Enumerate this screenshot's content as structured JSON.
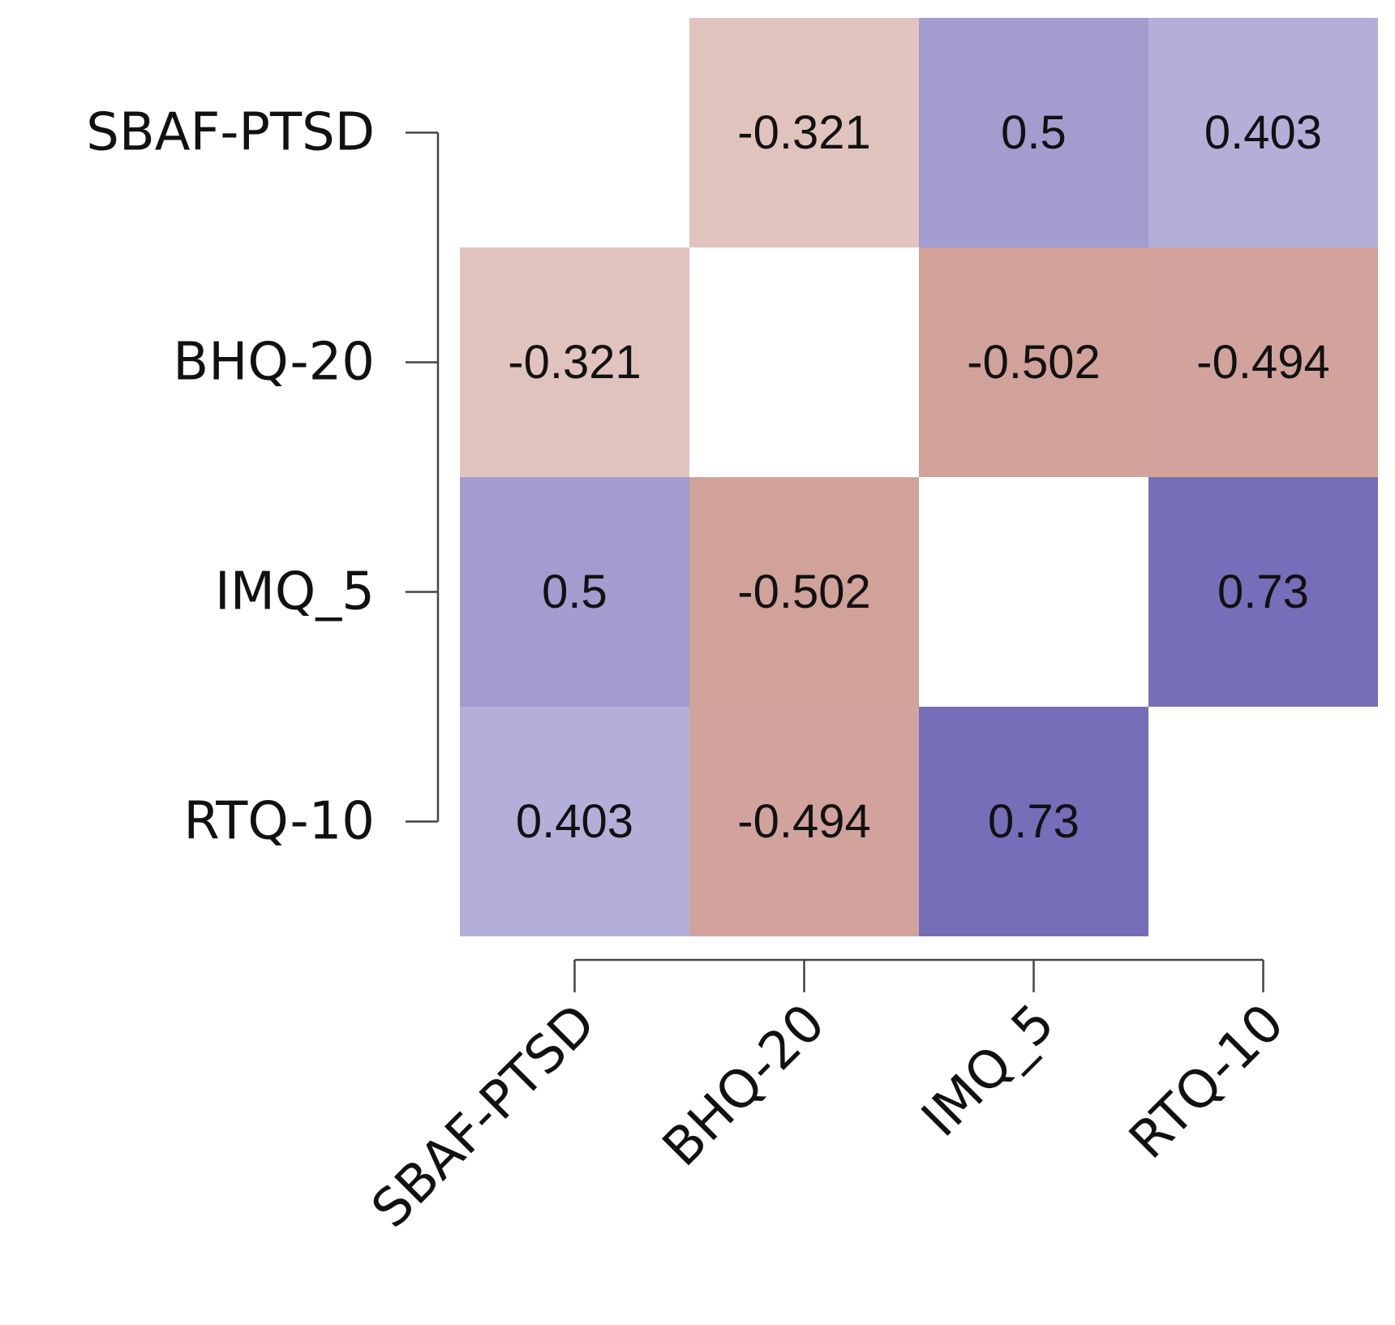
{
  "chart_data": {
    "type": "heatmap",
    "title": "",
    "xlabel": "",
    "ylabel": "",
    "rows": [
      "SBAF-PTSD",
      "BHQ-20",
      "IMQ_5",
      "RTQ-10"
    ],
    "columns": [
      "SBAF-PTSD",
      "BHQ-20",
      "IMQ_5",
      "RTQ-10"
    ],
    "values": [
      [
        null,
        -0.321,
        0.5,
        0.403
      ],
      [
        -0.321,
        null,
        -0.502,
        -0.494
      ],
      [
        0.5,
        -0.502,
        null,
        0.73
      ],
      [
        0.403,
        -0.494,
        0.73,
        null
      ]
    ],
    "value_labels": [
      [
        "",
        "-0.321",
        "0.5",
        "0.403"
      ],
      [
        "-0.321",
        "",
        "-0.502",
        "-0.494"
      ],
      [
        "0.5",
        "-0.502",
        "",
        "0.73"
      ],
      [
        "0.403",
        "-0.494",
        "0.73",
        ""
      ]
    ],
    "colors": {
      "negative": "#9e3b2b",
      "positive": "#3b2e9a",
      "neutral": "#ffffff",
      "text": "#111111"
    },
    "color_scale": [
      -1,
      1
    ],
    "grid": false,
    "legend": "none"
  }
}
